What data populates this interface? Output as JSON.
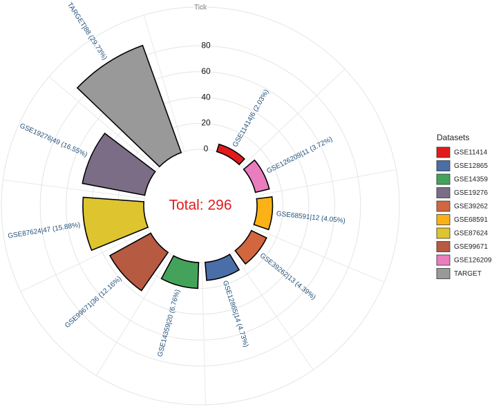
{
  "chart_data": {
    "type": "polar-bar",
    "total_label": "Total: 296",
    "axis_label": "Tick",
    "categories": [
      "GSE11414",
      "GSE126209",
      "GSE68591",
      "GSE39262",
      "GSE12865",
      "GSE14359",
      "GSE99671",
      "GSE87624",
      "GSE19276",
      "TARGET"
    ],
    "values": [
      6,
      11,
      12,
      13,
      14,
      20,
      36,
      47,
      49,
      88
    ],
    "value_labels": [
      "GSE11414|6 (2.03%)",
      "GSE126209|11 (3.72%)",
      "GSE68591|12 (4.05%)",
      "GSE39262|13 (4.39%)",
      "GSE12865|14 (4.73%)",
      "GSE14359|20 (6.76%)",
      "GSE99671|36 (12.16%)",
      "GSE87624|47 (15.88%)",
      "GSE19276|49 (16.55%)",
      "TARGET|88 (29.73%)"
    ],
    "ylim": [
      0,
      110
    ],
    "yticks": [
      0,
      20,
      40,
      60,
      80
    ],
    "grid": true,
    "legend_title": "Datasets",
    "legend_position": "right",
    "legend": [
      {
        "name": "GSE11414",
        "color": "#e31a1c"
      },
      {
        "name": "GSE12865",
        "color": "#4a6ea8"
      },
      {
        "name": "GSE14359",
        "color": "#44a35a"
      },
      {
        "name": "GSE19276",
        "color": "#7b6d85"
      },
      {
        "name": "GSE39262",
        "color": "#d2663f"
      },
      {
        "name": "GSE68591",
        "color": "#fbb217"
      },
      {
        "name": "GSE87624",
        "color": "#dec42f"
      },
      {
        "name": "GSE99671",
        "color": "#b65a42"
      },
      {
        "name": "GSE126209",
        "color": "#e97dbd"
      },
      {
        "name": "TARGET",
        "color": "#999999"
      }
    ]
  }
}
